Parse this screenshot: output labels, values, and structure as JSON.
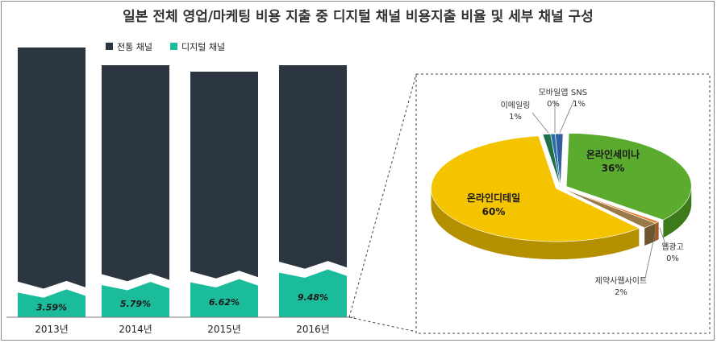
{
  "chart_data": [
    {
      "type": "bar",
      "title": "일본 전체 영업/마케팅 비용 지출 중 디지털 채널 비용지출 비율 및 세부 채널 구성",
      "categories": [
        "2013년",
        "2014년",
        "2015년",
        "2016년"
      ],
      "series": [
        {
          "name": "전통 채널",
          "values": [
            96.41,
            94.21,
            93.38,
            90.52
          ]
        },
        {
          "name": "디지털 채널",
          "values": [
            3.59,
            5.79,
            6.62,
            9.48
          ],
          "labels": [
            "3.59%",
            "5.79%",
            "6.62%",
            "9.48%"
          ]
        }
      ],
      "stacked": true,
      "legend": "top-left",
      "colors": {
        "traditional": "#2b3640",
        "digital": "#1abc9c"
      },
      "grid": false
    },
    {
      "type": "pie",
      "style": "3d-exploded",
      "slices": [
        {
          "label": "온라인세미나",
          "value": 36,
          "value_label": "36%",
          "color": "#5aab2e",
          "side": "#3d7a1c"
        },
        {
          "label": "웹광고",
          "value": 0,
          "value_label": "0%",
          "color": "#e87a2a",
          "side": "#a8561b"
        },
        {
          "label": "제약사웹사이트",
          "value": 2,
          "value_label": "2%",
          "color": "#9b7a4a",
          "side": "#6e5530"
        },
        {
          "label": "온라인디테일",
          "value": 60,
          "value_label": "60%",
          "color": "#f5c400",
          "side": "#b48f00"
        },
        {
          "label": "이메일링",
          "value": 1,
          "value_label": "1%",
          "color": "#1f6f4a",
          "side": "#14492f"
        },
        {
          "label": "모바일앱",
          "value": 0,
          "value_label": "0%",
          "color": "#2a6ea8",
          "side": "#1b4a73"
        },
        {
          "label": "SNS",
          "value": 1,
          "value_label": "1%",
          "color": "#2f5f9e",
          "side": "#1f3f6a"
        }
      ]
    }
  ]
}
